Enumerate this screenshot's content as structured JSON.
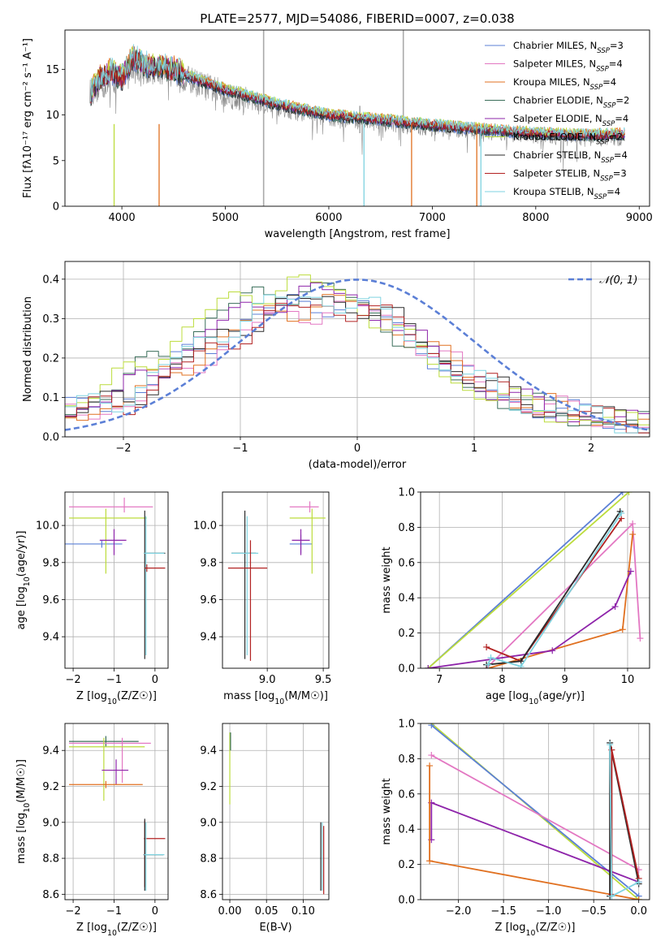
{
  "figure": {
    "title": "PLATE=2577, MJD=54086, FIBERID=0007, z=0.038"
  },
  "colors": {
    "Chabrier MILES": "#5b7fd6",
    "Salpeter MILES": "#e377c2",
    "Kroupa MILES": "#e07020",
    "Chabrier ELODIE": "#3a6e5a",
    "Salpeter ELODIE": "#8e24aa",
    "Kroupa ELODIE": "#bcdc3c",
    "Chabrier STELIB": "#2b2b2b",
    "Salpeter STELIB": "#b22222",
    "Kroupa STELIB": "#7fd3e0",
    "data": "#888888"
  },
  "legend": [
    {
      "label": "Chabrier MILES, N",
      "sub": "SSP",
      "suffix": "=3",
      "color": "#5b7fd6"
    },
    {
      "label": "Salpeter MILES, N",
      "sub": "SSP",
      "suffix": "=4",
      "color": "#e377c2"
    },
    {
      "label": "Kroupa MILES, N",
      "sub": "SSP",
      "suffix": "=4",
      "color": "#e07020"
    },
    {
      "label": "Chabrier ELODIE, N",
      "sub": "SSP",
      "suffix": "=2",
      "color": "#3a6e5a"
    },
    {
      "label": "Salpeter ELODIE, N",
      "sub": "SSP",
      "suffix": "=4",
      "color": "#8e24aa"
    },
    {
      "label": "Kroupa ELODIE, N",
      "sub": "SSP",
      "suffix": "=2",
      "color": "#bcdc3c"
    },
    {
      "label": "Chabrier STELIB, N",
      "sub": "SSP",
      "suffix": "=4",
      "color": "#2b2b2b"
    },
    {
      "label": "Salpeter STELIB, N",
      "sub": "SSP",
      "suffix": "=3",
      "color": "#b22222"
    },
    {
      "label": "Kroupa STELIB, N",
      "sub": "SSP",
      "suffix": "=4",
      "color": "#7fd3e0"
    }
  ],
  "chart_data": [
    {
      "id": "spectrum",
      "type": "line",
      "xlabel": "wavelength [Angstrom, rest frame]",
      "ylabel": "Flux [fλ10⁻¹⁷ erg cm⁻² s⁻¹ A⁻¹]",
      "xlim": [
        3450,
        9100
      ],
      "ylim": [
        0,
        19.3
      ],
      "xticks": [
        4000,
        5000,
        6000,
        7000,
        8000,
        9000
      ],
      "yticks": [
        0,
        5,
        10,
        15
      ],
      "grid": false,
      "legend_position": "top-right",
      "model_trend": {
        "x": [
          3700,
          3800,
          3900,
          4000,
          4100,
          4200,
          4300,
          4400,
          4500,
          4700,
          5000,
          5500,
          6000,
          6500,
          7000,
          7500,
          8000,
          8500,
          8850
        ],
        "y": [
          12.5,
          14.2,
          14.8,
          14.0,
          16.3,
          15.8,
          15.3,
          15.4,
          15.0,
          14.0,
          12.8,
          11.2,
          10.0,
          9.5,
          8.9,
          8.4,
          8.0,
          7.8,
          7.9
        ]
      },
      "data_trend": {
        "x": [
          3700,
          3900,
          4100,
          4300,
          4500,
          4700,
          5000,
          5500,
          6000,
          6500,
          7000,
          7500,
          8000,
          8500,
          8850
        ],
        "y": [
          12.5,
          13.6,
          15.0,
          14.8,
          14.6,
          13.6,
          12.3,
          10.8,
          9.7,
          9.2,
          8.6,
          8.2,
          7.8,
          7.5,
          7.5
        ]
      }
    },
    {
      "id": "residuals",
      "type": "histogram",
      "xlabel": "(data-model)/error",
      "ylabel": "Normed distribution",
      "xlim": [
        -2.5,
        2.5
      ],
      "ylim": [
        0,
        0.445
      ],
      "xticks": [
        -2,
        -1,
        0,
        1,
        2
      ],
      "yticks": [
        0.0,
        0.1,
        0.2,
        0.3,
        0.4
      ],
      "grid": true,
      "legend_position": "top-right",
      "reference_label": "𝒩(0, 1)",
      "bin_width": 0.1,
      "profile_x": [
        -2.5,
        -2.0,
        -1.5,
        -1.0,
        -0.7,
        -0.3,
        0.0,
        0.3,
        0.6,
        1.0,
        1.5,
        2.0,
        2.5
      ],
      "profile_y": [
        0.06,
        0.1,
        0.2,
        0.3,
        0.34,
        0.36,
        0.345,
        0.3,
        0.23,
        0.14,
        0.08,
        0.05,
        0.03
      ],
      "series_params": [
        {
          "name": "Chabrier MILES",
          "shift": 0.0,
          "scale": 0.96,
          "phase": 0.3
        },
        {
          "name": "Salpeter MILES",
          "shift": 0.1,
          "scale": 0.92,
          "phase": 1.1
        },
        {
          "name": "Kroupa MILES",
          "shift": 0.05,
          "scale": 0.95,
          "phase": 2.0
        },
        {
          "name": "Chabrier ELODIE",
          "shift": -0.15,
          "scale": 1.05,
          "phase": 2.7
        },
        {
          "name": "Salpeter ELODIE",
          "shift": -0.05,
          "scale": 1.02,
          "phase": 3.5
        },
        {
          "name": "Kroupa ELODIE",
          "shift": -0.2,
          "scale": 1.08,
          "phase": 4.2
        },
        {
          "name": "Chabrier STELIB",
          "shift": 0.05,
          "scale": 0.97,
          "phase": 5.0
        },
        {
          "name": "Salpeter STELIB",
          "shift": 0.08,
          "scale": 0.93,
          "phase": 5.7
        },
        {
          "name": "Kroupa STELIB",
          "shift": -0.02,
          "scale": 0.99,
          "phase": 6.4
        }
      ]
    },
    {
      "id": "age-vs-Z",
      "type": "scatter",
      "xlabel": "Z [log10(Z/Z☉)]",
      "ylabel": "age  [log10(age/yr)]",
      "xlim": [
        -2.2,
        0.32
      ],
      "ylim": [
        9.23,
        10.18
      ],
      "xticks": [
        -2,
        -1,
        0
      ],
      "yticks": [
        9.4,
        9.6,
        9.8,
        10.0
      ],
      "grid": true,
      "points": [
        {
          "series": "Chabrier MILES",
          "x": -1.3,
          "y": 9.9,
          "xerr": [
            0.9,
            0.5
          ],
          "yerr": [
            0.02,
            0.02
          ]
        },
        {
          "series": "Salpeter MILES",
          "x": -0.75,
          "y": 10.1,
          "xerr": [
            1.35,
            0.7
          ],
          "yerr": [
            0.03,
            0.05
          ]
        },
        {
          "series": "Kroupa ELODIE",
          "x": -1.2,
          "y": 10.04,
          "xerr": [
            0.9,
            1.0
          ],
          "yerr": [
            0.3,
            0.05
          ]
        },
        {
          "series": "Salpeter ELODIE",
          "x": -1.0,
          "y": 9.92,
          "xerr": [
            0.35,
            0.3
          ],
          "yerr": [
            0.08,
            0.06
          ]
        },
        {
          "series": "Chabrier STELIB",
          "x": -0.25,
          "y": 9.85,
          "xerr": [
            0.02,
            0.5
          ],
          "yerr": [
            0.57,
            0.23
          ]
        },
        {
          "series": "Kroupa STELIB",
          "x": -0.22,
          "y": 9.85,
          "xerr": [
            0.05,
            0.45
          ],
          "yerr": [
            0.55,
            0.2
          ]
        },
        {
          "series": "Salpeter STELIB",
          "x": -0.2,
          "y": 9.77,
          "xerr": [
            0.05,
            0.45
          ],
          "yerr": [
            0.02,
            0.02
          ]
        }
      ]
    },
    {
      "id": "age-vs-mass",
      "type": "scatter",
      "xlabel": "mass [log10(M/M☉)]",
      "ylabel": "",
      "xlim": [
        8.6,
        9.55
      ],
      "ylim": [
        9.23,
        10.18
      ],
      "xticks": [
        9.0,
        9.5
      ],
      "yticks": [
        9.4,
        9.6,
        9.8,
        10.0
      ],
      "grid": true,
      "points": [
        {
          "series": "Chabrier MILES",
          "x": 9.3,
          "y": 9.9,
          "xerr": [
            0.1,
            0.1
          ],
          "yerr": [
            0.05,
            0.05
          ]
        },
        {
          "series": "Salpeter MILES",
          "x": 9.38,
          "y": 10.1,
          "xerr": [
            0.18,
            0.08
          ],
          "yerr": [
            0.03,
            0.03
          ]
        },
        {
          "series": "Kroupa ELODIE",
          "x": 9.4,
          "y": 10.04,
          "xerr": [
            0.2,
            0.12
          ],
          "yerr": [
            0.3,
            0.05
          ]
        },
        {
          "series": "Salpeter ELODIE",
          "x": 9.3,
          "y": 9.92,
          "xerr": [
            0.08,
            0.08
          ],
          "yerr": [
            0.08,
            0.06
          ]
        },
        {
          "series": "Chabrier STELIB",
          "x": 8.8,
          "y": 9.85,
          "xerr": [
            0.12,
            0.1
          ],
          "yerr": [
            0.57,
            0.23
          ]
        },
        {
          "series": "Kroupa STELIB",
          "x": 8.82,
          "y": 9.85,
          "xerr": [
            0.14,
            0.1
          ],
          "yerr": [
            0.55,
            0.2
          ]
        },
        {
          "series": "Salpeter STELIB",
          "x": 8.85,
          "y": 9.77,
          "xerr": [
            0.2,
            0.15
          ],
          "yerr": [
            0.5,
            0.15
          ]
        }
      ]
    },
    {
      "id": "weight-vs-age",
      "type": "line",
      "xlabel": "age  [log10(age/yr)]",
      "ylabel": "mass weight",
      "xlim": [
        6.7,
        10.35
      ],
      "ylim": [
        0,
        1.0
      ],
      "xticks": [
        7,
        8,
        9,
        10
      ],
      "yticks": [
        0.0,
        0.2,
        0.4,
        0.6,
        0.8,
        1.0
      ],
      "grid": true,
      "series": [
        {
          "name": "Chabrier MILES",
          "x": [
            6.82,
            9.92
          ],
          "y": [
            0.0,
            1.0
          ]
        },
        {
          "name": "Kroupa ELODIE",
          "x": [
            6.82,
            10.02
          ],
          "y": [
            0.0,
            1.0
          ]
        },
        {
          "name": "Salpeter MILES",
          "x": [
            7.75,
            10.08,
            10.2
          ],
          "y": [
            0.0,
            0.82,
            0.17
          ]
        },
        {
          "name": "Kroupa MILES",
          "x": [
            7.78,
            9.92,
            10.08
          ],
          "y": [
            0.0,
            0.22,
            0.76
          ]
        },
        {
          "name": "Salpeter ELODIE",
          "x": [
            6.82,
            8.8,
            9.8,
            10.05
          ],
          "y": [
            0.0,
            0.1,
            0.35,
            0.55
          ]
        },
        {
          "name": "Salpeter STELIB",
          "x": [
            7.75,
            8.3,
            9.9
          ],
          "y": [
            0.12,
            0.04,
            0.85
          ]
        },
        {
          "name": "Chabrier STELIB",
          "x": [
            7.75,
            8.3,
            9.88
          ],
          "y": [
            0.02,
            0.04,
            0.89
          ]
        },
        {
          "name": "Kroupa STELIB",
          "x": [
            7.78,
            7.82,
            8.3,
            9.9
          ],
          "y": [
            0.02,
            0.06,
            0.01,
            0.88
          ]
        }
      ]
    },
    {
      "id": "mass-vs-Z",
      "type": "scatter",
      "xlabel": "Z [log10(Z/Z☉)]",
      "ylabel": "mass [log10(M/M☉)]",
      "xlim": [
        -2.2,
        0.32
      ],
      "ylim": [
        8.57,
        9.55
      ],
      "xticks": [
        -2,
        -1,
        0
      ],
      "yticks": [
        8.6,
        8.8,
        9.0,
        9.2,
        9.4
      ],
      "grid": true,
      "points": [
        {
          "series": "Chabrier ELODIE",
          "x": -1.2,
          "y": 9.45,
          "xerr": [
            0.9,
            0.8
          ],
          "yerr": [
            0.03,
            0.03
          ]
        },
        {
          "series": "Salpeter MILES",
          "x": -0.8,
          "y": 9.44,
          "xerr": [
            1.3,
            0.7
          ],
          "yerr": [
            0.22,
            0.03
          ]
        },
        {
          "series": "Kroupa ELODIE",
          "x": -1.25,
          "y": 9.42,
          "xerr": [
            0.85,
            1.0
          ],
          "yerr": [
            0.3,
            0.05
          ]
        },
        {
          "series": "Salpeter ELODIE",
          "x": -0.95,
          "y": 9.29,
          "xerr": [
            0.35,
            0.3
          ],
          "yerr": [
            0.08,
            0.06
          ]
        },
        {
          "series": "Kroupa MILES",
          "x": -1.2,
          "y": 9.21,
          "xerr": [
            0.9,
            0.9
          ],
          "yerr": [
            0.02,
            0.02
          ]
        },
        {
          "series": "Salpeter STELIB",
          "x": -0.25,
          "y": 8.91,
          "xerr": [
            0.02,
            0.5
          ],
          "yerr": [
            0.27,
            0.1
          ]
        },
        {
          "series": "Chabrier STELIB",
          "x": -0.25,
          "y": 8.82,
          "xerr": [
            0.03,
            0.45
          ],
          "yerr": [
            0.2,
            0.2
          ]
        },
        {
          "series": "Kroupa STELIB",
          "x": -0.22,
          "y": 8.82,
          "xerr": [
            0.05,
            0.45
          ],
          "yerr": [
            0.2,
            0.18
          ]
        }
      ]
    },
    {
      "id": "mass-vs-EBV",
      "type": "scatter",
      "xlabel": "E(B-V)",
      "ylabel": "",
      "xlim": [
        -0.01,
        0.135
      ],
      "ylim": [
        8.57,
        9.55
      ],
      "xticks": [
        0.0,
        0.05,
        0.1
      ],
      "yticks": [
        8.6,
        8.8,
        9.0,
        9.2,
        9.4
      ],
      "grid": true,
      "points": [
        {
          "series": "Kroupa ELODIE",
          "x": 0.0,
          "y": 9.3,
          "xerr": [
            0,
            0
          ],
          "yerr": [
            0.2,
            0.2
          ]
        },
        {
          "series": "Chabrier ELODIE",
          "x": 0.001,
          "y": 9.45,
          "xerr": [
            0,
            0
          ],
          "yerr": [
            0.05,
            0.05
          ]
        },
        {
          "series": "Salpeter STELIB",
          "x": 0.128,
          "y": 8.8,
          "xerr": [
            0,
            0
          ],
          "yerr": [
            0.2,
            0.18
          ]
        },
        {
          "series": "Chabrier STELIB",
          "x": 0.124,
          "y": 8.82,
          "xerr": [
            0,
            0
          ],
          "yerr": [
            0.2,
            0.18
          ]
        },
        {
          "series": "Kroupa STELIB",
          "x": 0.126,
          "y": 8.82,
          "xerr": [
            0,
            0
          ],
          "yerr": [
            0.2,
            0.18
          ]
        }
      ]
    },
    {
      "id": "weight-vs-Z",
      "type": "line",
      "xlabel": "Z [log10(Z/Z☉)]",
      "ylabel": "mass weight",
      "xlim": [
        -2.42,
        0.12
      ],
      "ylim": [
        0,
        1.0
      ],
      "xticks": [
        -2.0,
        -1.5,
        -1.0,
        -0.5,
        0.0
      ],
      "yticks": [
        0.0,
        0.2,
        0.4,
        0.6,
        0.8,
        1.0
      ],
      "grid": true,
      "series": [
        {
          "name": "Kroupa ELODIE",
          "x": [
            -2.3,
            0.0
          ],
          "y": [
            1.0,
            0.0
          ]
        },
        {
          "name": "Chabrier MILES",
          "x": [
            -2.3,
            0.0
          ],
          "y": [
            0.99,
            0.02
          ]
        },
        {
          "name": "Salpeter MILES",
          "x": [
            -2.3,
            0.0
          ],
          "y": [
            0.82,
            0.17
          ]
        },
        {
          "name": "Salpeter ELODIE",
          "x": [
            -2.3,
            -2.3,
            0.0
          ],
          "y": [
            0.34,
            0.55,
            0.1
          ]
        },
        {
          "name": "Kroupa MILES",
          "x": [
            -2.32,
            -2.32,
            0.0
          ],
          "y": [
            0.76,
            0.22,
            0.0
          ]
        },
        {
          "name": "Chabrier STELIB",
          "x": [
            -0.32,
            -0.32,
            0.0
          ],
          "y": [
            0.02,
            0.89,
            0.09
          ]
        },
        {
          "name": "Salpeter STELIB",
          "x": [
            -0.3,
            -0.3,
            0.0
          ],
          "y": [
            0.03,
            0.85,
            0.12
          ]
        },
        {
          "name": "Kroupa STELIB",
          "x": [
            -0.32,
            -0.3,
            0.0
          ],
          "y": [
            0.88,
            0.02,
            0.1
          ]
        }
      ]
    }
  ]
}
